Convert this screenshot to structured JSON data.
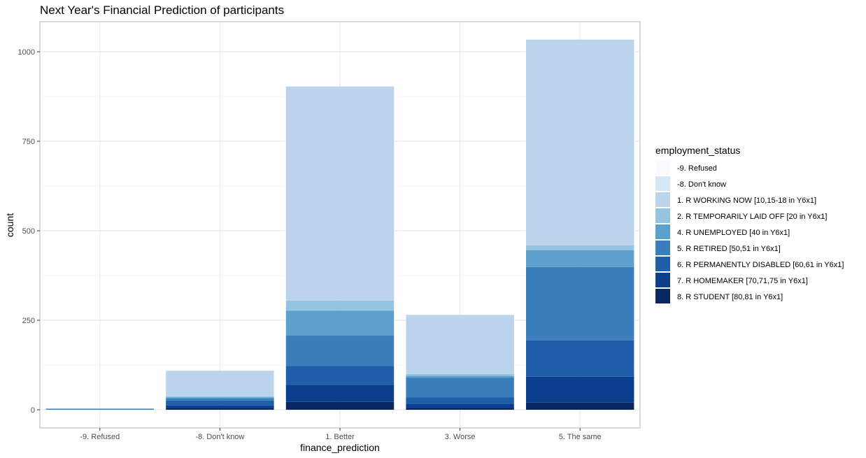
{
  "chart_data": {
    "type": "bar",
    "stacked": true,
    "title": "Next Year's Financial Prediction of participants",
    "xlabel": "finance_prediction",
    "ylabel": "count",
    "categories": [
      "-9. Refused",
      "-8. Don't know",
      "1. Better",
      "3. Worse",
      "5. The same"
    ],
    "ylim": [
      0,
      1080
    ],
    "yticks": [
      0,
      250,
      500,
      750,
      1000
    ],
    "grid": true,
    "legend": {
      "title": "employment_status",
      "position": "right"
    },
    "series": [
      {
        "name": "-9. Refused",
        "color": "#f7fbff",
        "values": [
          0,
          0,
          0,
          0,
          0
        ]
      },
      {
        "name": "-8. Don't know",
        "color": "#d8e7f5",
        "values": [
          0,
          0,
          0,
          0,
          0
        ]
      },
      {
        "name": "1. R WORKING NOW [10,15-18 in Y6x1]",
        "color": "#bcd3ec",
        "values": [
          0,
          72,
          598,
          165,
          575
        ]
      },
      {
        "name": "2. R TEMPORARILY LAID OFF [20 in Y6x1]",
        "color": "#94c4df",
        "values": [
          0,
          2,
          28,
          5,
          13
        ]
      },
      {
        "name": "4. R UNEMPLOYED [40 in Y6x1]",
        "color": "#5ca0cd",
        "values": [
          0,
          3,
          70,
          5,
          47
        ]
      },
      {
        "name": "5. R RETIRED [50,51 in Y6x1]",
        "color": "#3a7fbb",
        "values": [
          3,
          6,
          85,
          55,
          205
        ]
      },
      {
        "name": "6. R PERMANENTLY DISABLED [60,61 in Y6x1]",
        "color": "#1f5ea8",
        "values": [
          0,
          14,
          52,
          18,
          102
        ]
      },
      {
        "name": "7. R HOMEMAKER [70,71,75 in Y6x1]",
        "color": "#0b3e8c",
        "values": [
          0,
          8,
          48,
          12,
          72
        ]
      },
      {
        "name": "8. R STUDENT [80,81 in Y6x1]",
        "color": "#08285f",
        "values": [
          0,
          4,
          22,
          5,
          20
        ]
      }
    ]
  }
}
